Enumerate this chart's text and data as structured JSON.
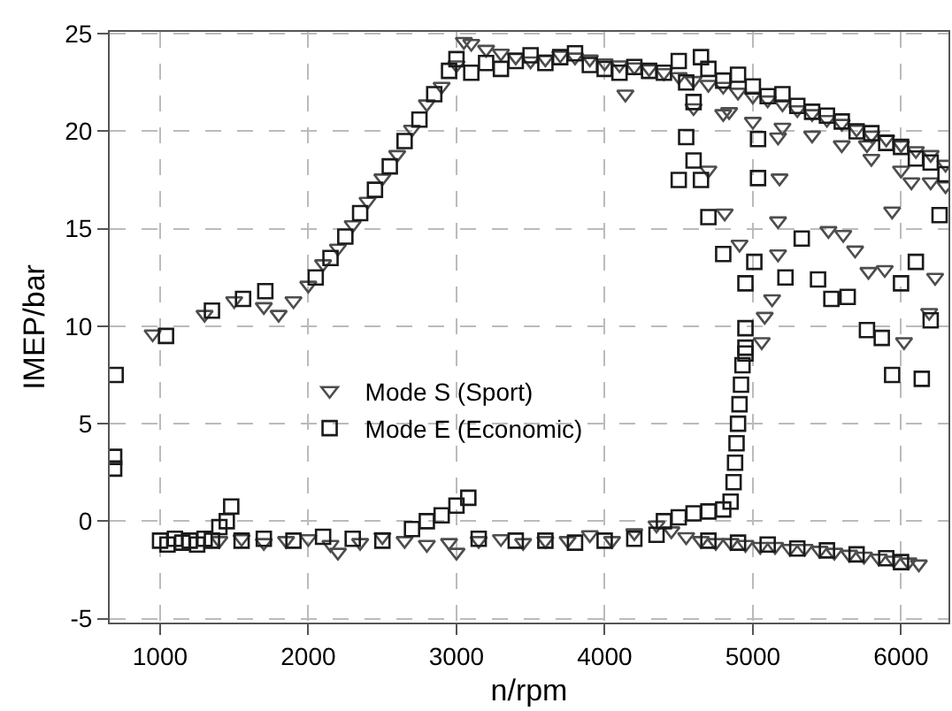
{
  "chart_data": {
    "type": "scatter",
    "xlabel": "n/rpm",
    "ylabel": "IMEP/bar",
    "xlim": [
      660,
      6320
    ],
    "ylim": [
      -5.2,
      25.1
    ],
    "xticks": [
      1000,
      2000,
      3000,
      4000,
      5000,
      6000
    ],
    "yticks": [
      -5,
      0,
      5,
      10,
      15,
      20,
      25
    ],
    "grid": true,
    "legend": "center left",
    "series": [
      {
        "name": "Mode S (Sport)",
        "color": "#4d4d4d",
        "marker": "triangle",
        "x": [
          950,
          1300,
          1500,
          1700,
          1800,
          1900,
          2000,
          2100,
          2200,
          2300,
          2400,
          2500,
          2600,
          2700,
          2800,
          2900,
          3000,
          3050,
          3100,
          3200,
          3300,
          3400,
          3500,
          3600,
          3700,
          3800,
          3900,
          4000,
          4100,
          4140,
          4200,
          4300,
          4400,
          4500,
          4600,
          4700,
          4800,
          4900,
          5000,
          5100,
          5200,
          5300,
          5400,
          5500,
          5600,
          5700,
          5800,
          5900,
          6000,
          6100,
          6200,
          6300,
          4600,
          4800,
          5000,
          5200,
          5400,
          5600,
          5800,
          6000,
          6200,
          6300,
          5180,
          5170,
          4700,
          4810,
          4910,
          5170,
          5130,
          5080,
          5060,
          5510,
          5610,
          5690,
          5780,
          5890,
          5940,
          6020,
          6190,
          6230,
          5770,
          6070,
          5170,
          4840,
          1400,
          1550,
          1700,
          1850,
          2000,
          2150,
          2200,
          2350,
          2500,
          2650,
          2800,
          2950,
          3000,
          3150,
          3300,
          3450,
          3600,
          3750,
          3900,
          4050,
          4200,
          4350,
          4450,
          4550,
          4650,
          4750,
          4850,
          4950,
          5050,
          5150,
          5250,
          5350,
          5450,
          5550,
          5650,
          5750,
          5850,
          5950,
          6050,
          6120
        ],
        "values": [
          9.6,
          10.6,
          11.3,
          11.0,
          10.6,
          11.3,
          12.1,
          13.2,
          14.0,
          15.2,
          16.4,
          17.6,
          18.8,
          20.1,
          21.4,
          22.3,
          23.4,
          24.6,
          24.5,
          24.2,
          24.0,
          23.8,
          23.6,
          23.7,
          23.9,
          23.8,
          23.7,
          23.5,
          23.4,
          21.9,
          23.3,
          23.2,
          23.0,
          22.8,
          22.6,
          22.4,
          22.3,
          22.0,
          21.8,
          21.6,
          21.4,
          21.1,
          20.9,
          20.6,
          20.4,
          20.1,
          19.8,
          19.6,
          19.3,
          19.0,
          18.8,
          18.3,
          21.2,
          20.9,
          20.5,
          20.2,
          19.8,
          19.3,
          18.6,
          18.0,
          17.4,
          17.2,
          17.6,
          15.4,
          18.0,
          15.8,
          14.2,
          13.7,
          11.4,
          10.5,
          9.2,
          14.9,
          14.7,
          13.9,
          12.8,
          12.9,
          15.9,
          9.2,
          10.7,
          12.5,
          19.3,
          17.4,
          19.7,
          21.0,
          -1.0,
          -0.9,
          -1.1,
          -1.0,
          -0.9,
          -1.2,
          -1.6,
          -1.1,
          -0.8,
          -1.0,
          -1.2,
          -1.1,
          -1.6,
          -1.0,
          -0.9,
          -1.1,
          -1.0,
          -1.0,
          -0.7,
          -1.0,
          -0.6,
          -0.2,
          -0.5,
          -0.8,
          -1.0,
          -1.1,
          -1.1,
          -1.2,
          -1.3,
          -1.3,
          -1.4,
          -1.4,
          -1.5,
          -1.6,
          -1.7,
          -1.8,
          -1.9,
          -2.0,
          -2.1,
          -2.2
        ]
      },
      {
        "name": "Mode E (Economic)",
        "color": "#1a1a1a",
        "marker": "square",
        "x": [
          700,
          690,
          690,
          1040,
          1350,
          1560,
          1710,
          2050,
          2150,
          2250,
          2350,
          2450,
          2550,
          2650,
          2750,
          2850,
          2950,
          3000,
          3100,
          3200,
          3300,
          3400,
          3500,
          3600,
          3700,
          3800,
          3900,
          4000,
          4100,
          4200,
          4300,
          4400,
          4500,
          4550,
          4600,
          4650,
          4700,
          4800,
          4900,
          5000,
          5100,
          5200,
          5300,
          5400,
          5500,
          5600,
          5700,
          5800,
          5900,
          6000,
          6100,
          6200,
          6300,
          4550,
          4600,
          4650,
          4500,
          4700,
          5035,
          5035,
          4800,
          5010,
          4950,
          5220,
          5330,
          5440,
          5530,
          5640,
          4950,
          4950,
          5770,
          5870,
          6000,
          6100,
          6200,
          6260,
          5940,
          6140,
          1000,
          1050,
          1100,
          1150,
          1200,
          1250,
          1300,
          1350,
          1400,
          1450,
          1480,
          1550,
          1700,
          1900,
          2100,
          2300,
          2500,
          2700,
          2800,
          2900,
          3000,
          3080,
          3150,
          3400,
          3600,
          3800,
          4000,
          4200,
          4350,
          4400,
          4500,
          4600,
          4700,
          4800,
          4850,
          4870,
          4880,
          4890,
          4900,
          4910,
          4920,
          4930,
          4950,
          4700,
          4900,
          5100,
          5300,
          5500,
          5700,
          5900,
          6000
        ],
        "values": [
          7.5,
          2.7,
          3.3,
          9.5,
          10.8,
          11.4,
          11.8,
          12.5,
          13.5,
          14.6,
          15.8,
          17.0,
          18.2,
          19.5,
          20.6,
          21.9,
          23.1,
          23.7,
          23.0,
          23.5,
          23.2,
          23.6,
          23.9,
          23.5,
          23.8,
          24.0,
          23.4,
          23.2,
          23.0,
          23.3,
          23.1,
          23.0,
          23.6,
          22.5,
          21.5,
          23.8,
          23.2,
          22.6,
          22.9,
          22.3,
          21.8,
          21.9,
          21.3,
          21.0,
          20.8,
          20.5,
          20.0,
          19.9,
          19.4,
          19.2,
          18.6,
          18.4,
          17.8,
          19.7,
          18.5,
          17.5,
          17.5,
          15.6,
          17.6,
          19.6,
          13.7,
          13.3,
          12.2,
          12.5,
          14.5,
          12.4,
          11.4,
          11.5,
          9.9,
          8.6,
          9.8,
          9.4,
          12.2,
          13.3,
          10.3,
          15.7,
          7.5,
          7.3,
          -1.0,
          -1.2,
          -0.9,
          -1.1,
          -1.0,
          -1.2,
          -0.9,
          -1.0,
          -0.3,
          0.0,
          0.75,
          -1.0,
          -0.9,
          -1.0,
          -0.8,
          -0.9,
          -1.0,
          -0.4,
          0.0,
          0.3,
          0.8,
          1.2,
          -0.9,
          -1.0,
          -1.0,
          -1.1,
          -1.0,
          -0.9,
          -0.7,
          0.0,
          0.2,
          0.4,
          0.5,
          0.6,
          1.0,
          2.0,
          3.0,
          4.0,
          5.0,
          6.0,
          7.0,
          8.0,
          8.9,
          -1.0,
          -1.1,
          -1.2,
          -1.4,
          -1.5,
          -1.7,
          -1.9,
          -2.1
        ]
      }
    ]
  }
}
